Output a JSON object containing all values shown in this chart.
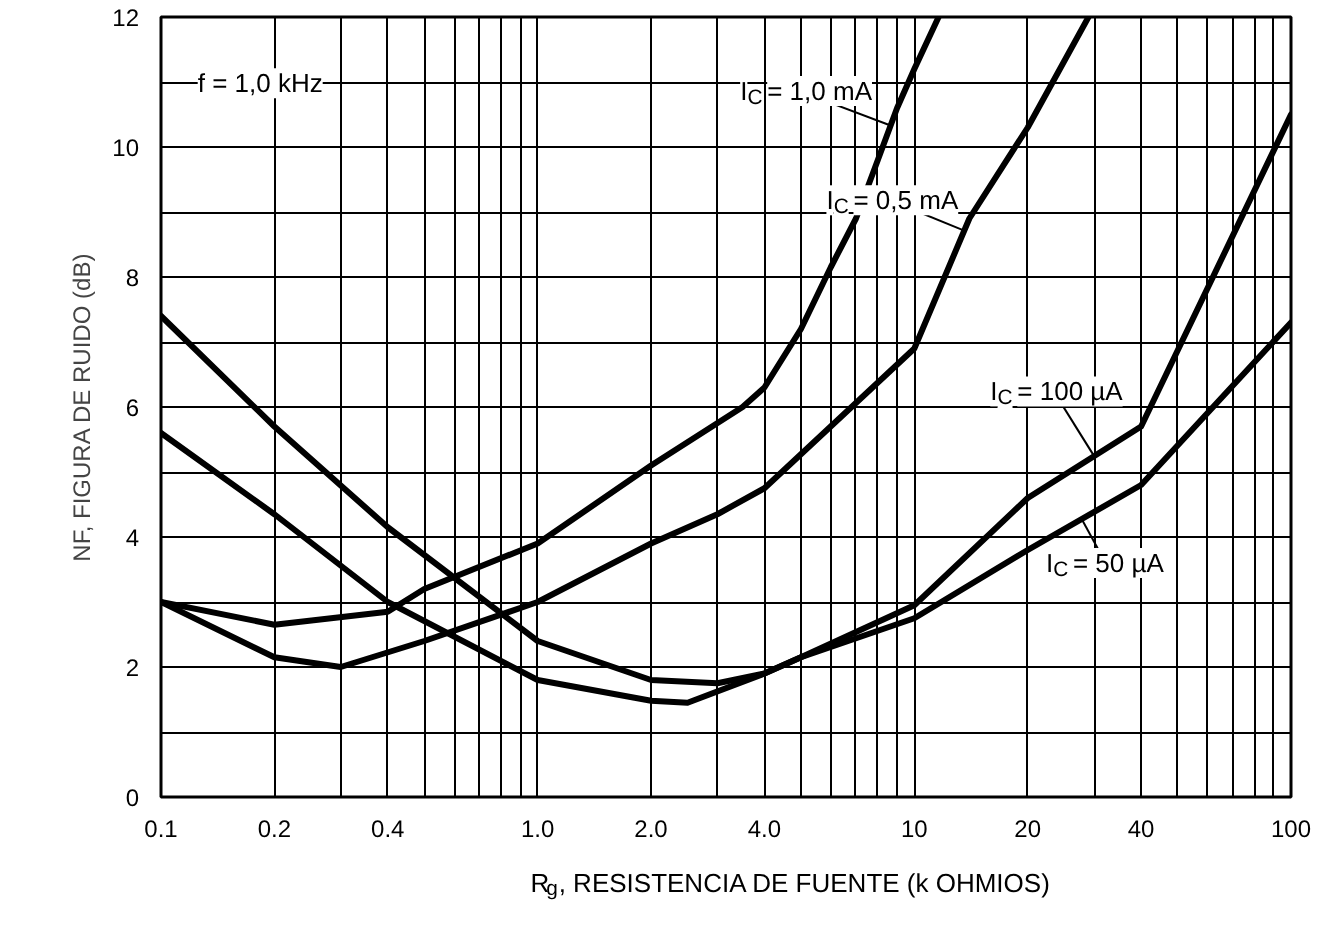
{
  "chart_data": {
    "type": "line",
    "xlabel": "R$_{g}$, RESISTENCIA DE FUENTE (k OHMIOS)",
    "ylabel": "NF, FIGURA DE RUIDO (dB)",
    "log": "x",
    "grid": true,
    "line_style": "solid",
    "marker": "none",
    "xlim": [
      0.1,
      100
    ],
    "ylim": [
      0,
      12
    ],
    "xticks": [
      0.1,
      0.2,
      0.4,
      {
        "value": 1,
        "label": "1.0"
      },
      {
        "value": 2,
        "label": "2.0"
      },
      {
        "value": 4,
        "label": "4.0"
      },
      10,
      20,
      40,
      100
    ],
    "yticks": [
      0,
      2,
      4,
      6,
      8,
      10,
      12
    ],
    "series": [
      {
        "name": "I$_{C}$ = 1,0 mA",
        "color": "#000000",
        "x": [
          0.1,
          0.2,
          0.4,
          0.5,
          1,
          2,
          3.5,
          4,
          5,
          6,
          7,
          8,
          9,
          10,
          11.6
        ],
        "values": [
          3.0,
          2.65,
          2.85,
          3.2,
          3.9,
          5.1,
          6.0,
          6.3,
          7.2,
          8.15,
          8.9,
          9.8,
          10.6,
          11.2,
          12
        ]
      },
      {
        "name": "I$_{C}$ = 0,5 mA",
        "color": "#000000",
        "x": [
          0.1,
          0.2,
          0.3,
          0.5,
          1,
          2,
          3,
          4,
          10,
          14,
          20,
          29
        ],
        "values": [
          3.0,
          2.15,
          2.0,
          2.4,
          3.0,
          3.9,
          4.35,
          4.75,
          6.9,
          8.9,
          10.3,
          12
        ]
      },
      {
        "name": "I$_{C}$ = 50 µA",
        "color": "#000000",
        "x": [
          0.1,
          0.2,
          0.4,
          1,
          2,
          3,
          4,
          5,
          10,
          20,
          40,
          100
        ],
        "values": [
          7.4,
          5.7,
          4.15,
          2.4,
          1.8,
          1.75,
          1.9,
          2.15,
          2.75,
          3.8,
          4.8,
          7.3
        ]
      },
      {
        "name": "I$_{C}$ = 100 µA",
        "color": "#000000",
        "x": [
          0.1,
          0.2,
          0.4,
          1,
          2,
          2.5,
          4,
          5,
          10,
          20,
          40,
          100
        ],
        "values": [
          5.6,
          4.35,
          3.0,
          1.8,
          1.48,
          1.45,
          1.9,
          2.15,
          2.95,
          4.6,
          5.7,
          10.5
        ]
      }
    ],
    "annotations": [
      "f = 1,0 kHz"
    ]
  }
}
